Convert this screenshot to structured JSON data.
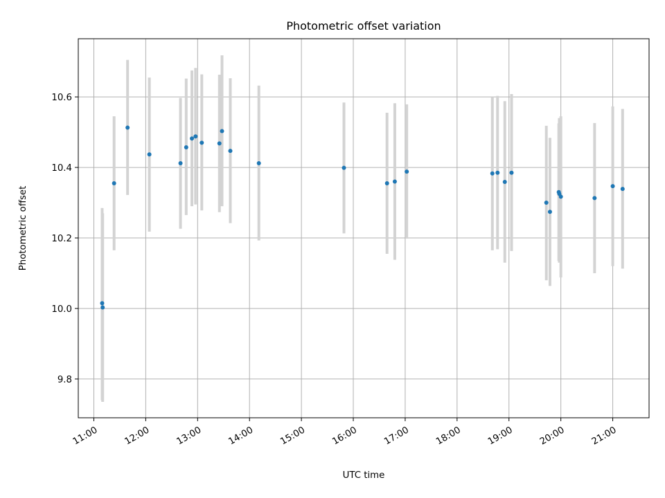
{
  "chart_data": {
    "type": "scatter",
    "title": "Photometric offset variation",
    "xlabel": "UTC time",
    "ylabel": "Photometric offset",
    "x_unit": "hours UTC",
    "xlim": [
      10.7,
      21.7
    ],
    "ylim": [
      9.69,
      10.765
    ],
    "grid": true,
    "x_ticks": [
      {
        "value": 11,
        "label": "11:00"
      },
      {
        "value": 12,
        "label": "12:00"
      },
      {
        "value": 13,
        "label": "13:00"
      },
      {
        "value": 14,
        "label": "14:00"
      },
      {
        "value": 15,
        "label": "15:00"
      },
      {
        "value": 16,
        "label": "16:00"
      },
      {
        "value": 17,
        "label": "17:00"
      },
      {
        "value": 18,
        "label": "18:00"
      },
      {
        "value": 19,
        "label": "19:00"
      },
      {
        "value": 20,
        "label": "20:00"
      },
      {
        "value": 21,
        "label": "21:00"
      }
    ],
    "y_ticks": [
      {
        "value": 9.8,
        "label": "9.8"
      },
      {
        "value": 10.0,
        "label": "10.0"
      },
      {
        "value": 10.2,
        "label": "10.2"
      },
      {
        "value": 10.4,
        "label": "10.4"
      },
      {
        "value": 10.6,
        "label": "10.6"
      }
    ],
    "series": [
      {
        "name": "offset",
        "marker_color": "#1f77b4",
        "errorbar_color": "#d3d3d3",
        "points": [
          {
            "x": 11.16,
            "y": 10.015,
            "lo": 9.74,
            "hi": 10.285
          },
          {
            "x": 11.17,
            "y": 10.003,
            "lo": 9.735,
            "hi": 10.27
          },
          {
            "x": 11.39,
            "y": 10.355,
            "lo": 10.165,
            "hi": 10.545
          },
          {
            "x": 11.65,
            "y": 10.513,
            "lo": 10.322,
            "hi": 10.705
          },
          {
            "x": 12.07,
            "y": 10.437,
            "lo": 10.218,
            "hi": 10.655
          },
          {
            "x": 12.67,
            "y": 10.412,
            "lo": 10.226,
            "hi": 10.597
          },
          {
            "x": 12.78,
            "y": 10.457,
            "lo": 10.265,
            "hi": 10.652
          },
          {
            "x": 12.89,
            "y": 10.482,
            "lo": 10.29,
            "hi": 10.675
          },
          {
            "x": 12.96,
            "y": 10.488,
            "lo": 10.295,
            "hi": 10.682
          },
          {
            "x": 13.08,
            "y": 10.47,
            "lo": 10.278,
            "hi": 10.664
          },
          {
            "x": 13.42,
            "y": 10.468,
            "lo": 10.273,
            "hi": 10.663
          },
          {
            "x": 13.47,
            "y": 10.503,
            "lo": 10.29,
            "hi": 10.718
          },
          {
            "x": 13.63,
            "y": 10.447,
            "lo": 10.242,
            "hi": 10.653
          },
          {
            "x": 14.18,
            "y": 10.412,
            "lo": 10.193,
            "hi": 10.632
          },
          {
            "x": 15.82,
            "y": 10.399,
            "lo": 10.213,
            "hi": 10.584
          },
          {
            "x": 16.65,
            "y": 10.355,
            "lo": 10.155,
            "hi": 10.555
          },
          {
            "x": 16.8,
            "y": 10.36,
            "lo": 10.138,
            "hi": 10.582
          },
          {
            "x": 17.03,
            "y": 10.388,
            "lo": 10.198,
            "hi": 10.579
          },
          {
            "x": 18.68,
            "y": 10.383,
            "lo": 10.165,
            "hi": 10.6
          },
          {
            "x": 18.78,
            "y": 10.385,
            "lo": 10.168,
            "hi": 10.603
          },
          {
            "x": 18.92,
            "y": 10.359,
            "lo": 10.13,
            "hi": 10.588
          },
          {
            "x": 19.05,
            "y": 10.385,
            "lo": 10.163,
            "hi": 10.608
          },
          {
            "x": 19.72,
            "y": 10.3,
            "lo": 10.08,
            "hi": 10.518
          },
          {
            "x": 19.79,
            "y": 10.274,
            "lo": 10.064,
            "hi": 10.484
          },
          {
            "x": 19.96,
            "y": 10.33,
            "lo": 10.135,
            "hi": 10.525
          },
          {
            "x": 19.97,
            "y": 10.325,
            "lo": 10.13,
            "hi": 10.54
          },
          {
            "x": 20.0,
            "y": 10.317,
            "lo": 10.088,
            "hi": 10.545
          },
          {
            "x": 20.65,
            "y": 10.313,
            "lo": 10.1,
            "hi": 10.526
          },
          {
            "x": 21.0,
            "y": 10.347,
            "lo": 10.12,
            "hi": 10.573
          },
          {
            "x": 21.19,
            "y": 10.339,
            "lo": 10.113,
            "hi": 10.566
          }
        ]
      }
    ]
  }
}
